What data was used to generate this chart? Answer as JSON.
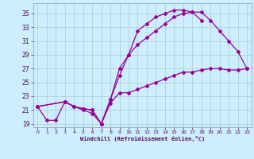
{
  "xlabel": "Windchill (Refroidissement éolien,°C)",
  "bg_color": "#cceeff",
  "grid_color": "#aacccc",
  "line_color": "#990099",
  "xlim": [
    -0.5,
    23.5
  ],
  "ylim": [
    18.5,
    36.5
  ],
  "yticks": [
    19,
    21,
    23,
    25,
    27,
    29,
    31,
    33,
    35
  ],
  "xticks": [
    0,
    1,
    2,
    3,
    4,
    5,
    6,
    7,
    8,
    9,
    10,
    11,
    12,
    13,
    14,
    15,
    16,
    17,
    18,
    19,
    20,
    21,
    22,
    23
  ],
  "line1": {
    "x": [
      0,
      1,
      2,
      3,
      4,
      5,
      6,
      7,
      8,
      9,
      10,
      11,
      12,
      13,
      14,
      15,
      16,
      17,
      18
    ],
    "y": [
      21.5,
      19.5,
      19.5,
      22.2,
      21.5,
      21.0,
      20.5,
      19.0,
      22.5,
      27.0,
      29.0,
      32.5,
      33.5,
      34.5,
      35.0,
      35.5,
      35.5,
      35.2,
      34.0
    ]
  },
  "line2": {
    "x": [
      0,
      3,
      4,
      5,
      6,
      7,
      8,
      9,
      10,
      11,
      12,
      13,
      14,
      15,
      16,
      17,
      18,
      19,
      20,
      21,
      22,
      23
    ],
    "y": [
      21.5,
      22.2,
      21.5,
      21.2,
      21.0,
      19.0,
      22.5,
      26.0,
      29.0,
      30.5,
      31.5,
      32.5,
      33.5,
      34.5,
      35.0,
      35.2,
      35.2,
      34.0,
      32.5,
      31.0,
      29.5,
      27.0
    ]
  },
  "line3": {
    "x": [
      0,
      3,
      4,
      5,
      6,
      7,
      8,
      9,
      10,
      11,
      12,
      13,
      14,
      15,
      16,
      17,
      18,
      19,
      20,
      21,
      22,
      23
    ],
    "y": [
      21.5,
      22.2,
      21.5,
      21.2,
      21.0,
      19.0,
      22.0,
      23.5,
      23.5,
      24.0,
      24.5,
      25.0,
      25.5,
      26.0,
      26.5,
      26.5,
      26.8,
      27.0,
      27.0,
      26.8,
      26.8,
      27.0
    ]
  }
}
